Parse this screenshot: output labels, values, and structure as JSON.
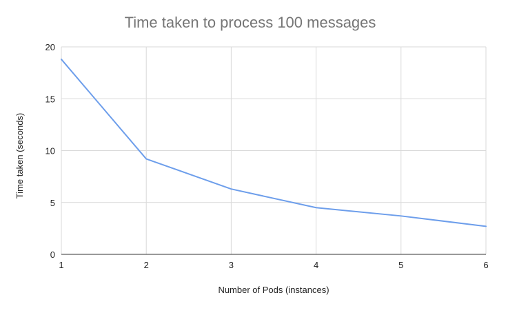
{
  "chart_data": {
    "type": "line",
    "title": "Time taken to process 100 messages",
    "xlabel": "Number of Pods (instances)",
    "ylabel": "Time taken (seconds)",
    "x": [
      1,
      2,
      3,
      4,
      5,
      6
    ],
    "xlim": [
      1,
      6
    ],
    "ylim": [
      0,
      20
    ],
    "yticks": [
      0,
      5,
      10,
      15,
      20
    ],
    "xticks": [
      1,
      2,
      3,
      4,
      5,
      6
    ],
    "grid": true,
    "legend": "none",
    "series": [
      {
        "values": [
          18.8,
          9.2,
          6.3,
          4.5,
          3.7,
          2.7
        ],
        "color": "#6d9eeb"
      }
    ]
  }
}
